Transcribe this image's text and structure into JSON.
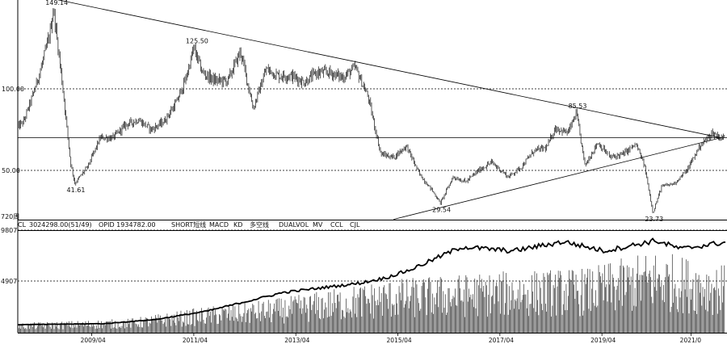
{
  "chart_data": [
    {
      "type": "candlestick",
      "title": "",
      "x_range": [
        "2007/10",
        "2021/08"
      ],
      "y_range": [
        20,
        160
      ],
      "price_levels": [
        100.0,
        50.0
      ],
      "price_levels_labels": [
        "100.00",
        "50.00"
      ],
      "annotations": [
        {
          "label": "149.14",
          "date": "2008/07",
          "value": 149.14
        },
        {
          "label": "41.61",
          "date": "2008/12",
          "value": 41.61
        },
        {
          "label": "125.50",
          "date": "2011/04",
          "value": 125.5
        },
        {
          "label": "29.54",
          "date": "2016/02",
          "value": 29.54
        },
        {
          "label": "85.53",
          "date": "2018/10",
          "value": 85.53
        },
        {
          "label": "23.73",
          "date": "2020/04",
          "value": 23.73
        }
      ],
      "close_series": [
        [
          "2007/10",
          75
        ],
        [
          "2007/12",
          80
        ],
        [
          "2008/02",
          95
        ],
        [
          "2008/04",
          112
        ],
        [
          "2008/06",
          132
        ],
        [
          "2008/07",
          149
        ],
        [
          "2008/09",
          105
        ],
        [
          "2008/11",
          55
        ],
        [
          "2008/12",
          42
        ],
        [
          "2009/03",
          52
        ],
        [
          "2009/06",
          70
        ],
        [
          "2009/09",
          70
        ],
        [
          "2009/12",
          78
        ],
        [
          "2010/03",
          81
        ],
        [
          "2010/06",
          75
        ],
        [
          "2010/09",
          80
        ],
        [
          "2010/12",
          92
        ],
        [
          "2011/02",
          105
        ],
        [
          "2011/04",
          125
        ],
        [
          "2011/06",
          110
        ],
        [
          "2011/09",
          105
        ],
        [
          "2011/12",
          105
        ],
        [
          "2012/03",
          123
        ],
        [
          "2012/06",
          88
        ],
        [
          "2012/09",
          112
        ],
        [
          "2012/12",
          108
        ],
        [
          "2013/03",
          108
        ],
        [
          "2013/06",
          104
        ],
        [
          "2013/09",
          110
        ],
        [
          "2013/12",
          110
        ],
        [
          "2014/03",
          107
        ],
        [
          "2014/06",
          113
        ],
        [
          "2014/09",
          95
        ],
        [
          "2014/12",
          60
        ],
        [
          "2015/03",
          58
        ],
        [
          "2015/06",
          65
        ],
        [
          "2015/09",
          48
        ],
        [
          "2015/12",
          38
        ],
        [
          "2016/02",
          30
        ],
        [
          "2016/05",
          46
        ],
        [
          "2016/08",
          43
        ],
        [
          "2016/11",
          50
        ],
        [
          "2017/02",
          55
        ],
        [
          "2017/06",
          46
        ],
        [
          "2017/09",
          52
        ],
        [
          "2017/12",
          62
        ],
        [
          "2018/03",
          64
        ],
        [
          "2018/05",
          76
        ],
        [
          "2018/08",
          73
        ],
        [
          "2018/10",
          85
        ],
        [
          "2018/12",
          53
        ],
        [
          "2019/03",
          67
        ],
        [
          "2019/06",
          58
        ],
        [
          "2019/09",
          60
        ],
        [
          "2019/12",
          66
        ],
        [
          "2020/02",
          53
        ],
        [
          "2020/04",
          24
        ],
        [
          "2020/06",
          40
        ],
        [
          "2020/09",
          42
        ],
        [
          "2020/12",
          50
        ],
        [
          "2021/03",
          65
        ],
        [
          "2021/06",
          73
        ],
        [
          "2021/08",
          70
        ]
      ],
      "trendlines": [
        {
          "name": "resistance",
          "from": [
            "2007/10",
            160
          ],
          "to": [
            "2021/08",
            70
          ]
        },
        {
          "name": "support",
          "from": [
            "2015/03",
            20
          ],
          "to": [
            "2021/08",
            70
          ]
        }
      ],
      "horizontal_line": 70
    },
    {
      "type": "bar",
      "title": "",
      "panel_label": "720周",
      "y_ticks": [
        "9807",
        "4907"
      ],
      "y_ticks_values": [
        9807,
        4907
      ],
      "x_ticks": [
        "2009/04",
        "2011/04",
        "2013/04",
        "2015/04",
        "2017/04",
        "2019/04",
        "2021/0"
      ],
      "series": [
        {
          "name": "",
          "kind": "bar",
          "description": "weekly volume",
          "profile": [
            [
              2007.8,
              600
            ],
            [
              2010,
              900
            ],
            [
              2011.3,
              1600
            ],
            [
              2013,
              2300
            ],
            [
              2015,
              3500
            ],
            [
              2017,
              4000
            ],
            [
              2019,
              4300
            ],
            [
              2020.3,
              5500
            ],
            [
              2021.6,
              4500
            ]
          ]
        },
        {
          "name": "",
          "kind": "line",
          "description": "open interest",
          "profile": [
            [
              2007.8,
              700
            ],
            [
              2009.5,
              800
            ],
            [
              2010.5,
              1200
            ],
            [
              2011.5,
              2000
            ],
            [
              2013,
              3800
            ],
            [
              2014.5,
              4700
            ],
            [
              2015,
              5200
            ],
            [
              2015.5,
              6000
            ],
            [
              2016.5,
              8200
            ],
            [
              2017.5,
              7800
            ],
            [
              2018.5,
              8700
            ],
            [
              2019.3,
              7800
            ],
            [
              2020.3,
              8800
            ],
            [
              2020.8,
              8000
            ],
            [
              2021.6,
              8600
            ]
          ]
        }
      ]
    }
  ],
  "indicator_bar": {
    "symbol": "CL",
    "vol": "3024298.00(51/49)",
    "opid": "OPID 1934782.00",
    "tabs": [
      "SHORT短线",
      "MACD",
      "KD",
      "多空线",
      "DUALVOL",
      "MV",
      "CCL",
      "CJL"
    ]
  }
}
